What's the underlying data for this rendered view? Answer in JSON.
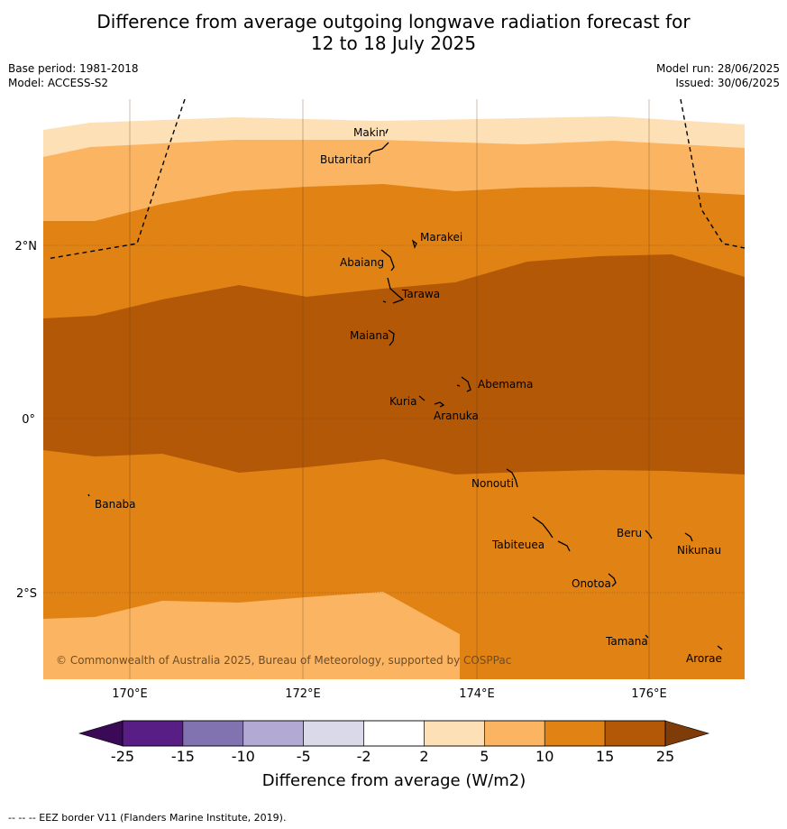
{
  "title_line1": "Difference from average outgoing longwave radiation forecast for",
  "title_line2": "12 to 18 July 2025",
  "base_period": "Base period: 1981-2018",
  "model": "Model: ACCESS-S2",
  "model_run": "Model run: 28/06/2025",
  "issued": "Issued: 30/06/2025",
  "axes": {
    "lon_labels": [
      "170°E",
      "172°E",
      "174°E",
      "176°E"
    ],
    "lat_labels": [
      "2°N",
      "0°",
      "2°S"
    ]
  },
  "places": [
    "Makin",
    "Butaritari",
    "Marakei",
    "Abaiang",
    "Tarawa",
    "Maiana",
    "Abemama",
    "Kuria",
    "Aranuka",
    "Nonouti",
    "Banaba",
    "Tabiteuea",
    "Beru",
    "Nikunau",
    "Onotoa",
    "Tamana",
    "Arorae"
  ],
  "credit": "© Commonwealth of Australia 2025, Bureau of Meteorology, supported by COSPPac",
  "colorbar": {
    "ticks": [
      "-25",
      "-15",
      "-10",
      "-5",
      "-2",
      "2",
      "5",
      "10",
      "15",
      "25"
    ],
    "colors": [
      "#591e86",
      "#8172b0",
      "#b2aad4",
      "#d9d9ea",
      "#ffffff",
      "#fee0b6",
      "#fbb562",
      "#e08214",
      "#b35807"
    ],
    "under_color": "#3b0a57",
    "over_color": "#7f3b08",
    "label": "Difference from average (W/m2)"
  },
  "footer": "--  --  -- EEZ border V11 (Flanders Marine Institute, 2019)."
}
